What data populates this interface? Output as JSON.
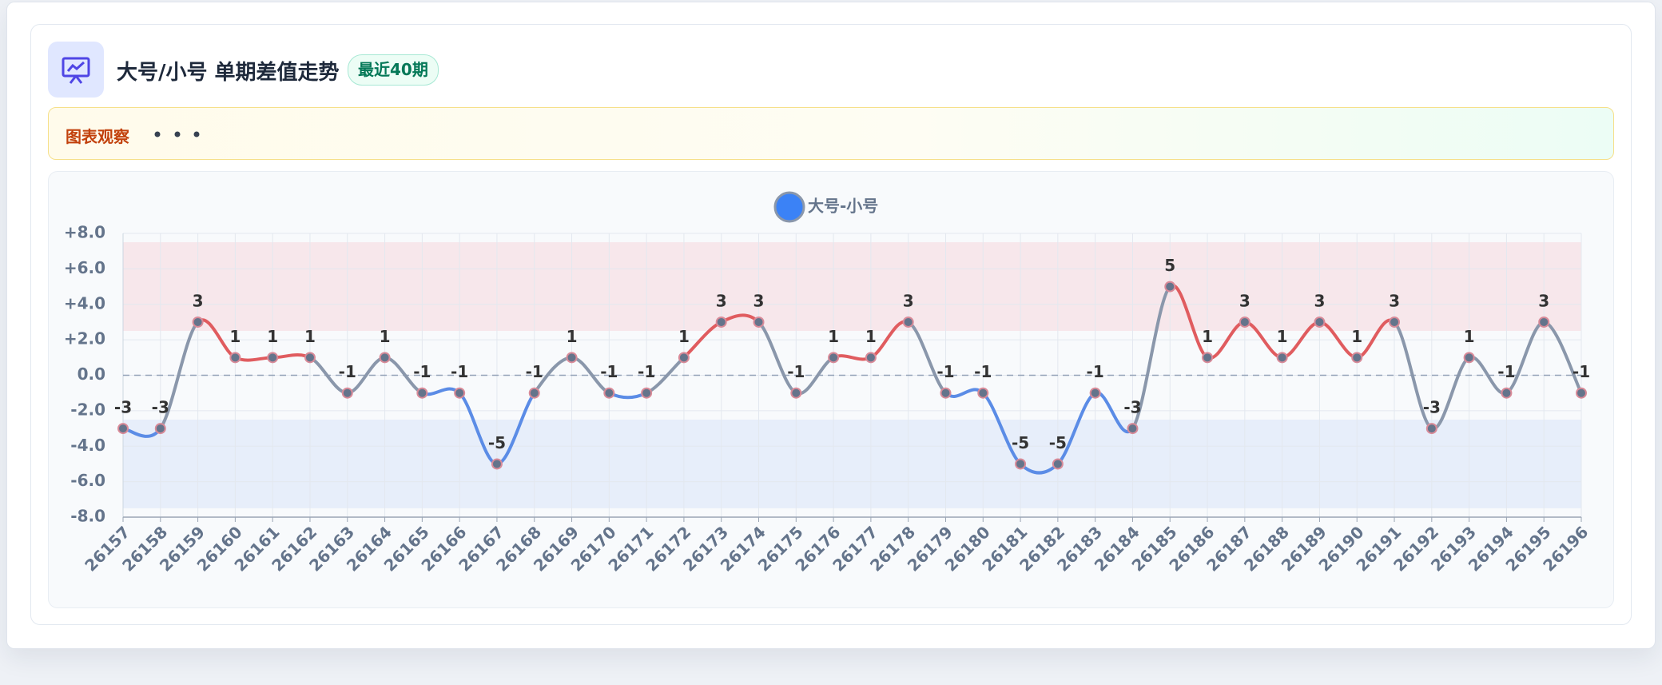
{
  "header": {
    "title": "大号/小号 单期差值走势",
    "badge": "最近40期"
  },
  "observation": {
    "label": "图表观察"
  },
  "chart_data": {
    "type": "line",
    "smooth": true,
    "legend": "top",
    "grid": true,
    "zero_line": true,
    "data_labels": true,
    "categories": [
      "26157",
      "26158",
      "26159",
      "26160",
      "26161",
      "26162",
      "26163",
      "26164",
      "26165",
      "26166",
      "26167",
      "26168",
      "26169",
      "26170",
      "26171",
      "26172",
      "26173",
      "26174",
      "26175",
      "26176",
      "26177",
      "26178",
      "26179",
      "26180",
      "26181",
      "26182",
      "26183",
      "26184",
      "26185",
      "26186",
      "26187",
      "26188",
      "26189",
      "26190",
      "26191",
      "26192",
      "26193",
      "26194",
      "26195",
      "26196"
    ],
    "series": [
      {
        "name": "大号-小号",
        "color": "#3b82f6",
        "values": [
          -3,
          -3,
          3,
          1,
          1,
          1,
          -1,
          1,
          -1,
          -1,
          -5,
          -1,
          1,
          -1,
          -1,
          1,
          3,
          3,
          -1,
          1,
          1,
          3,
          -1,
          -1,
          -5,
          -5,
          -1,
          -3,
          5,
          1,
          3,
          1,
          3,
          1,
          3,
          -3,
          1,
          -1,
          3,
          -1
        ]
      }
    ],
    "segment_colors": {
      "positive": "#e05c5f",
      "negative": "#5b8ce6",
      "mixed": "#8a97ab"
    },
    "bands": [
      {
        "from": 2.5,
        "to": 7.5,
        "color": "#f7e7eb"
      },
      {
        "from": -2.5,
        "to": -7.5,
        "color": "#e7eefa"
      }
    ],
    "ylim": [
      -8,
      8
    ],
    "yticks": [
      {
        "value": 8,
        "label": "+8.0"
      },
      {
        "value": 6,
        "label": "+6.0"
      },
      {
        "value": 4,
        "label": "+4.0"
      },
      {
        "value": 2,
        "label": "+2.0"
      },
      {
        "value": 0,
        "label": "0.0"
      },
      {
        "value": -2,
        "label": "-2.0"
      },
      {
        "value": -4,
        "label": "-4.0"
      },
      {
        "value": -6,
        "label": "-6.0"
      },
      {
        "value": -8,
        "label": "-8.0"
      }
    ]
  }
}
